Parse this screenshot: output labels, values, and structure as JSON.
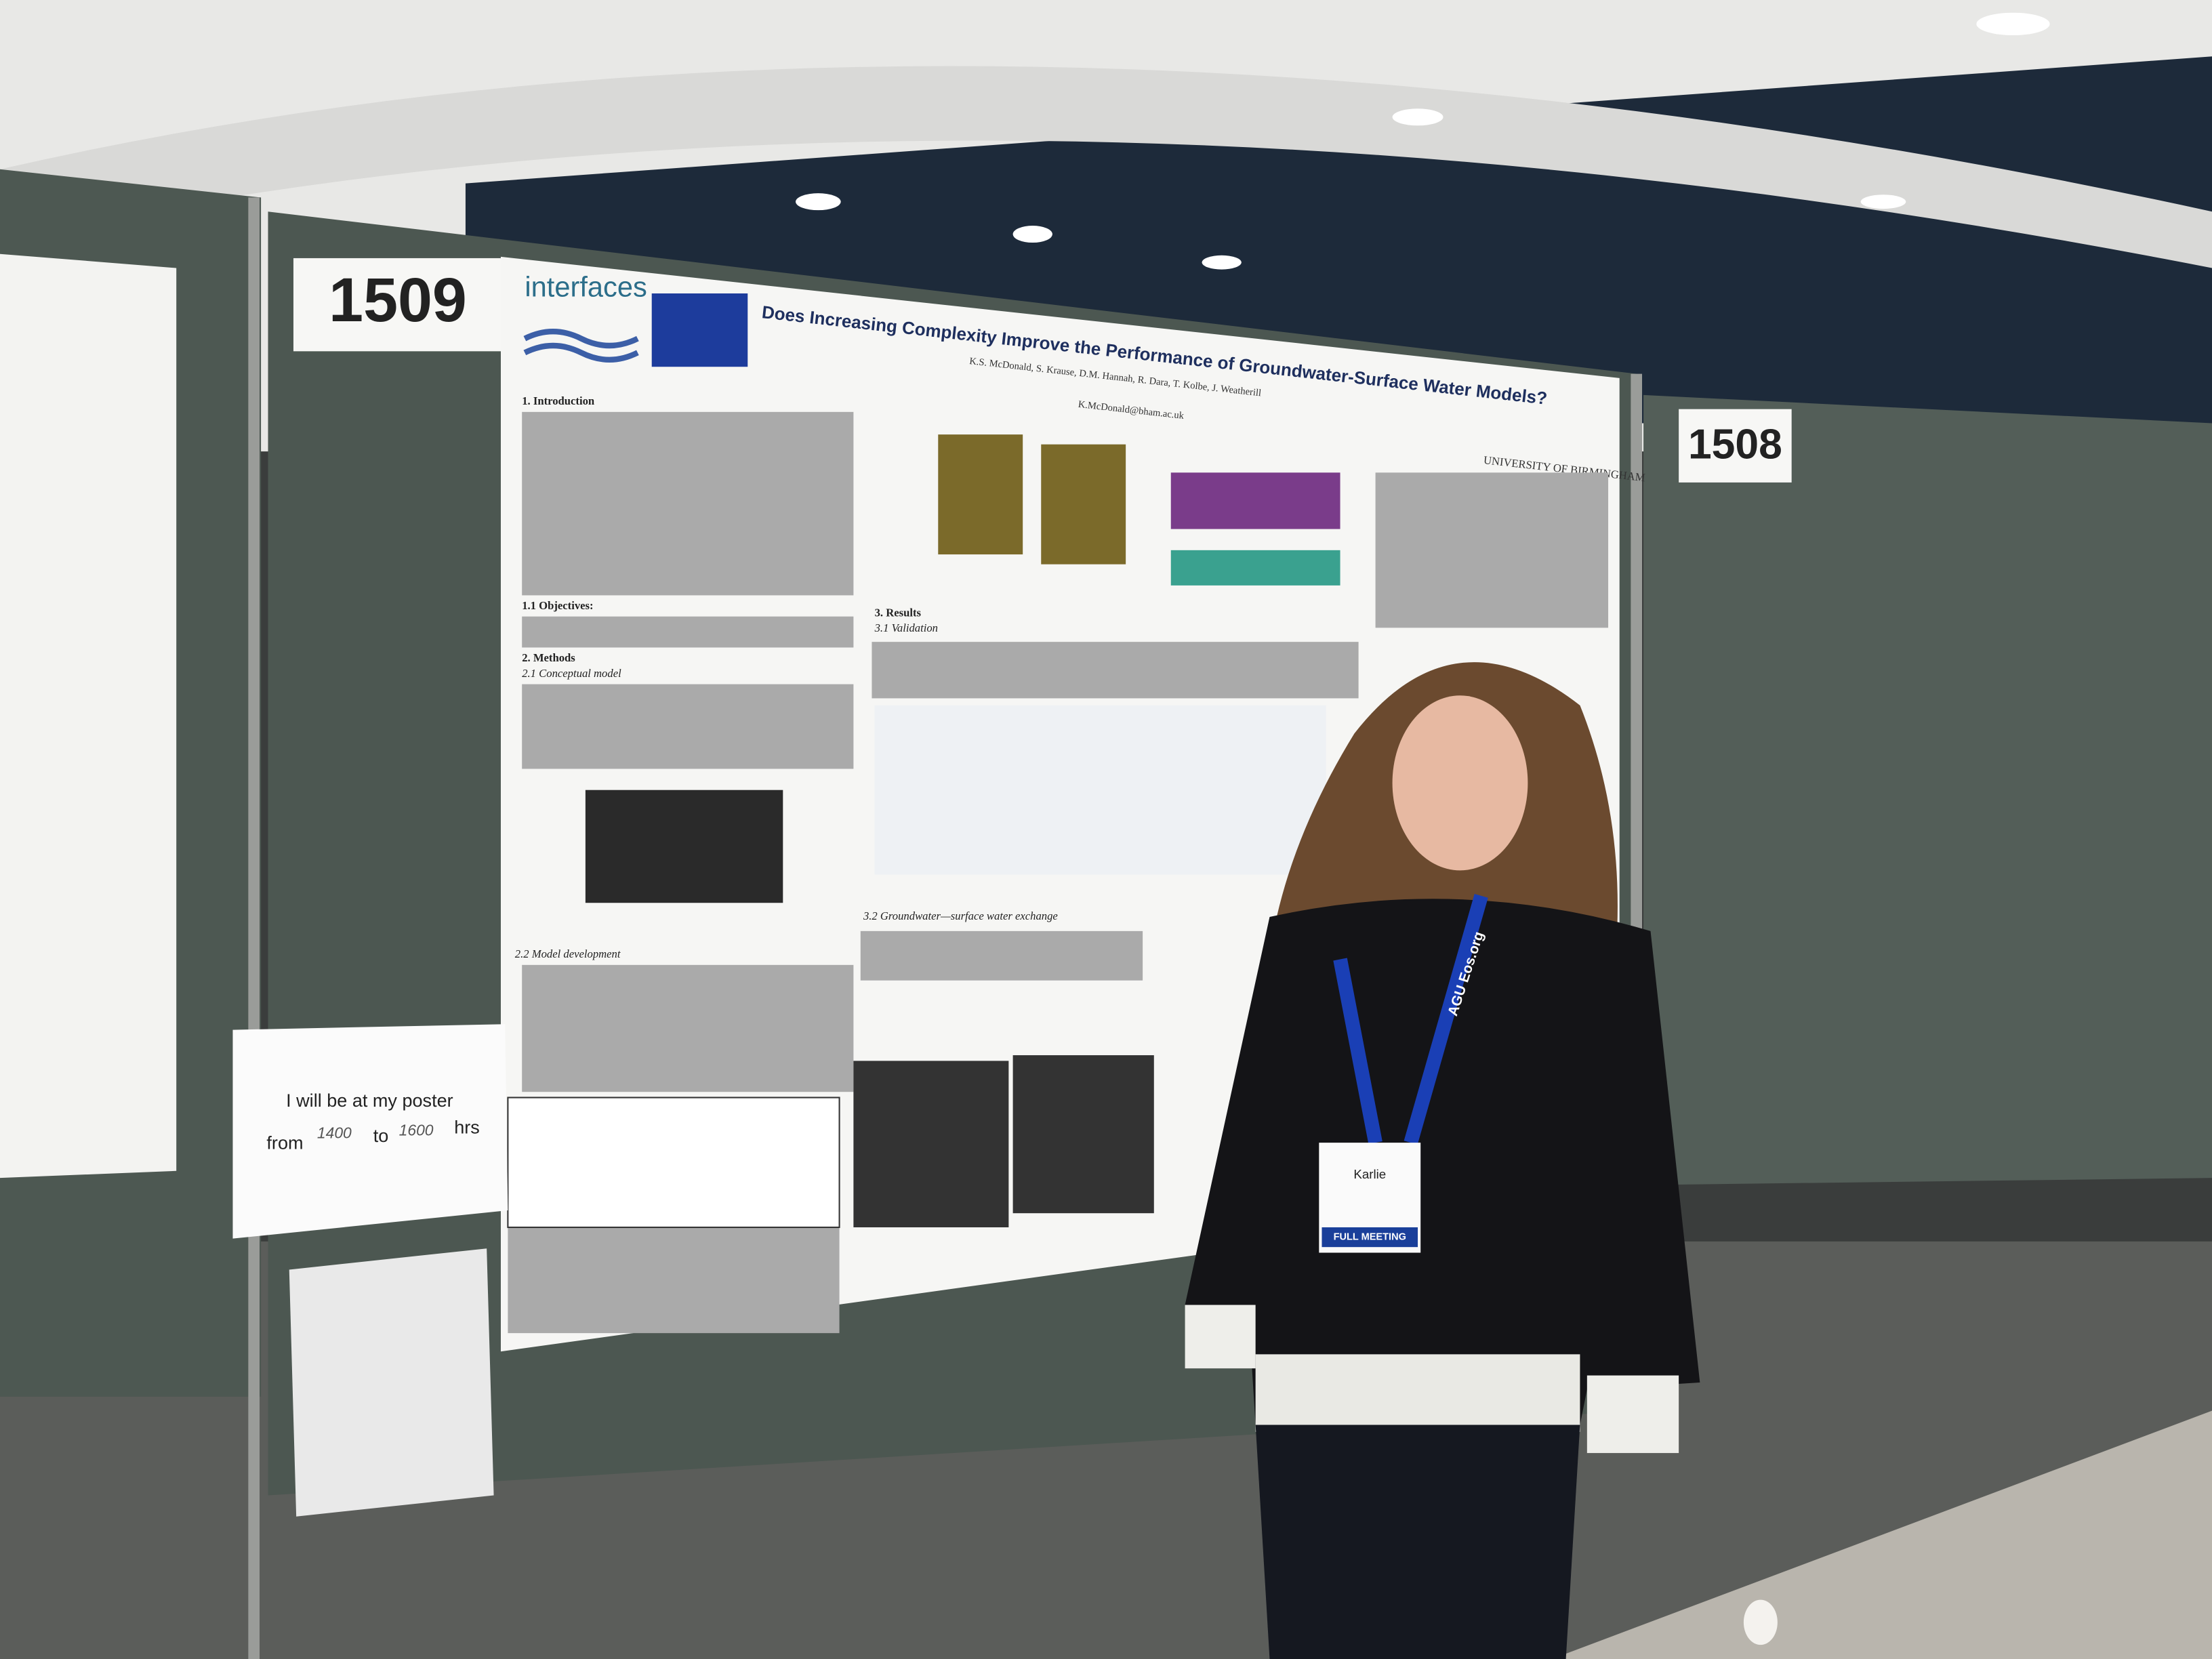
{
  "booth_numbers": {
    "left": "1509",
    "right": "1508"
  },
  "poster": {
    "logo": "interfaces",
    "title": "Does Increasing Complexity Improve the Performance of Groundwater-Surface Water Models?",
    "authors": "K.S. McDonald, S. Krause, D.M. Hannah, R. Dara, T. Kolbe, J. Weatherill",
    "email": "K.McDonald@bham.ac.uk",
    "university": "UNIVERSITY OF BIRMINGHAM",
    "sections": [
      "1. Introduction",
      "1.1 Objectives:",
      "2. Methods",
      "2.1 Conceptual model",
      "2.2 Model development",
      "3. Results",
      "3.1 Validation",
      "3.2 Groundwater—surface water exchange"
    ]
  },
  "sign": {
    "line1": "I will be at my poster",
    "from": "from",
    "start": "1400",
    "to": "to",
    "end": "1600",
    "hrs": "hrs"
  },
  "badge": {
    "name": "Karlie",
    "meeting": "FULL MEETING",
    "lanyard": "AGU Eos.org"
  }
}
